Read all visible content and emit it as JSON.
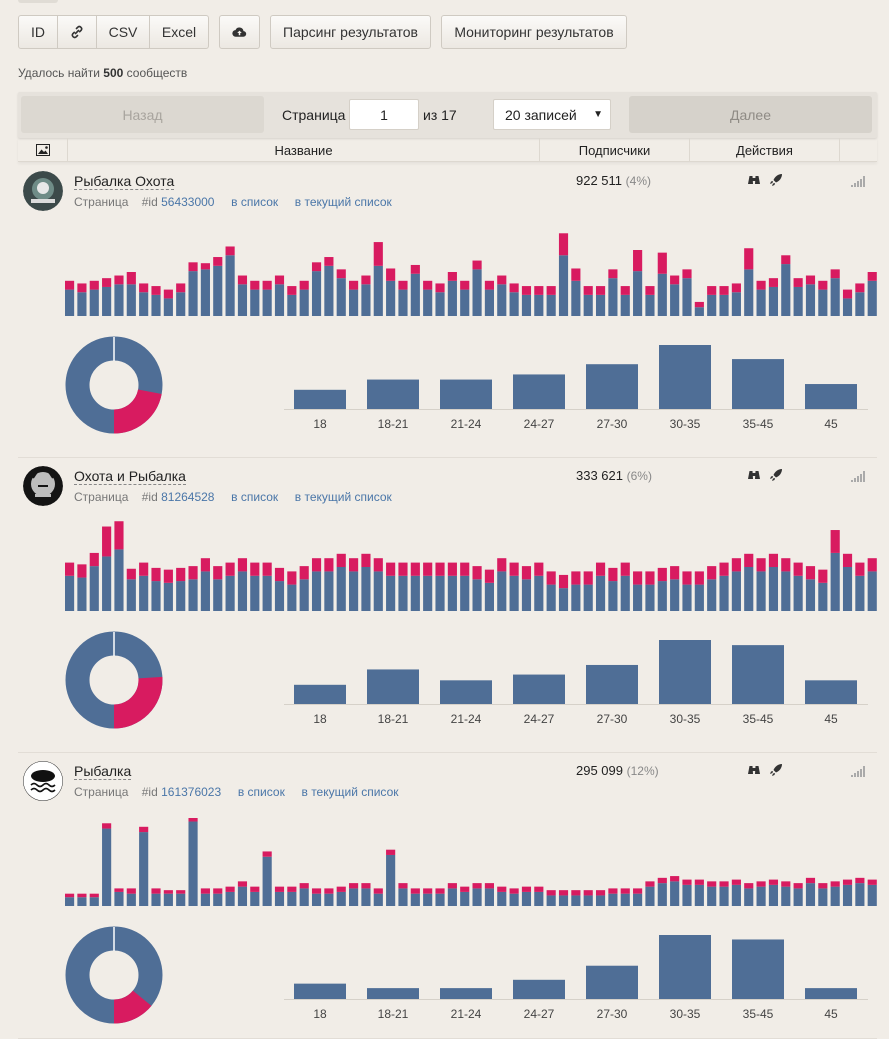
{
  "toolbar": {
    "id_label": "ID",
    "link_icon": "link-icon",
    "csv_label": "CSV",
    "excel_label": "Excel",
    "upload_icon": "cloud-upload-icon",
    "parse_label": "Парсинг результатов",
    "monitor_label": "Мониторинг результатов"
  },
  "found": {
    "prefix": "Удалось найти ",
    "count": "500",
    "suffix": " сообществ"
  },
  "pager": {
    "back_label": "Назад",
    "page_label": "Страница",
    "page_value": "1",
    "of_label": "из 17",
    "per_page": "20 записей",
    "next_label": "Далее"
  },
  "table": {
    "headers": {
      "image_icon": "image-icon",
      "name": "Название",
      "subscribers": "Подписчики",
      "actions": "Действия"
    }
  },
  "colors": {
    "blue": "#4f6e96",
    "pink": "#d81b60",
    "accent_link": "#4a76a8"
  },
  "age_labels": [
    "18",
    "18-21",
    "21-24",
    "24-27",
    "27-30",
    "30-35",
    "35-45",
    "45"
  ],
  "groups": [
    {
      "name": "Рыбалка Охота",
      "type": "Страница",
      "id_prefix": "#id",
      "id": "56433000",
      "to_list": "в список",
      "to_current_list": "в текущий список",
      "subscribers": "922 511",
      "percent": "(4%)",
      "donut_female_share": 0.22,
      "age_values": [
        0.3,
        0.46,
        0.46,
        0.54,
        0.7,
        1.0,
        0.78,
        0.39
      ],
      "daily": [
        [
          0.3,
          0.1
        ],
        [
          0.27,
          0.1
        ],
        [
          0.3,
          0.1
        ],
        [
          0.33,
          0.1
        ],
        [
          0.36,
          0.1
        ],
        [
          0.36,
          0.14
        ],
        [
          0.27,
          0.1
        ],
        [
          0.24,
          0.1
        ],
        [
          0.2,
          0.1
        ],
        [
          0.27,
          0.1
        ],
        [
          0.51,
          0.1
        ],
        [
          0.53,
          0.07
        ],
        [
          0.57,
          0.1
        ],
        [
          0.69,
          0.1
        ],
        [
          0.36,
          0.1
        ],
        [
          0.3,
          0.1
        ],
        [
          0.3,
          0.1
        ],
        [
          0.36,
          0.1
        ],
        [
          0.24,
          0.1
        ],
        [
          0.3,
          0.1
        ],
        [
          0.51,
          0.1
        ],
        [
          0.57,
          0.1
        ],
        [
          0.43,
          0.1
        ],
        [
          0.3,
          0.1
        ],
        [
          0.36,
          0.1
        ],
        [
          0.57,
          0.27
        ],
        [
          0.4,
          0.14
        ],
        [
          0.3,
          0.1
        ],
        [
          0.48,
          0.1
        ],
        [
          0.3,
          0.1
        ],
        [
          0.27,
          0.1
        ],
        [
          0.4,
          0.1
        ],
        [
          0.3,
          0.1
        ],
        [
          0.53,
          0.1
        ],
        [
          0.3,
          0.1
        ],
        [
          0.36,
          0.1
        ],
        [
          0.27,
          0.1
        ],
        [
          0.24,
          0.1
        ],
        [
          0.24,
          0.1
        ],
        [
          0.24,
          0.1
        ],
        [
          0.69,
          0.25
        ],
        [
          0.4,
          0.14
        ],
        [
          0.24,
          0.1
        ],
        [
          0.24,
          0.1
        ],
        [
          0.43,
          0.1
        ],
        [
          0.24,
          0.1
        ],
        [
          0.51,
          0.24
        ],
        [
          0.24,
          0.1
        ],
        [
          0.48,
          0.24
        ],
        [
          0.36,
          0.1
        ],
        [
          0.43,
          0.1
        ],
        [
          0.1,
          0.06
        ],
        [
          0.24,
          0.1
        ],
        [
          0.24,
          0.1
        ],
        [
          0.27,
          0.1
        ],
        [
          0.53,
          0.24
        ],
        [
          0.3,
          0.1
        ],
        [
          0.33,
          0.1
        ],
        [
          0.59,
          0.1
        ],
        [
          0.33,
          0.1
        ],
        [
          0.36,
          0.1
        ],
        [
          0.3,
          0.1
        ],
        [
          0.43,
          0.1
        ],
        [
          0.2,
          0.1
        ],
        [
          0.27,
          0.1
        ],
        [
          0.4,
          0.1
        ]
      ]
    },
    {
      "name": "Охота и Рыбалка",
      "type": "Страница",
      "id_prefix": "#id",
      "id": "81264528",
      "to_list": "в список",
      "to_current_list": "в текущий список",
      "subscribers": "333 621",
      "percent": "(6%)",
      "donut_female_share": 0.26,
      "age_values": [
        0.3,
        0.54,
        0.37,
        0.46,
        0.61,
        1.0,
        0.92,
        0.37
      ],
      "daily": [
        [
          0.4,
          0.15
        ],
        [
          0.38,
          0.15
        ],
        [
          0.51,
          0.15
        ],
        [
          0.62,
          0.34
        ],
        [
          0.7,
          0.32
        ],
        [
          0.36,
          0.12
        ],
        [
          0.4,
          0.15
        ],
        [
          0.34,
          0.15
        ],
        [
          0.32,
          0.15
        ],
        [
          0.34,
          0.15
        ],
        [
          0.36,
          0.15
        ],
        [
          0.45,
          0.15
        ],
        [
          0.36,
          0.15
        ],
        [
          0.4,
          0.15
        ],
        [
          0.45,
          0.15
        ],
        [
          0.4,
          0.15
        ],
        [
          0.4,
          0.15
        ],
        [
          0.34,
          0.15
        ],
        [
          0.3,
          0.15
        ],
        [
          0.36,
          0.15
        ],
        [
          0.45,
          0.15
        ],
        [
          0.45,
          0.15
        ],
        [
          0.5,
          0.15
        ],
        [
          0.45,
          0.15
        ],
        [
          0.5,
          0.15
        ],
        [
          0.45,
          0.15
        ],
        [
          0.4,
          0.15
        ],
        [
          0.4,
          0.15
        ],
        [
          0.4,
          0.15
        ],
        [
          0.4,
          0.15
        ],
        [
          0.4,
          0.15
        ],
        [
          0.4,
          0.15
        ],
        [
          0.4,
          0.15
        ],
        [
          0.36,
          0.15
        ],
        [
          0.32,
          0.15
        ],
        [
          0.45,
          0.15
        ],
        [
          0.4,
          0.15
        ],
        [
          0.36,
          0.15
        ],
        [
          0.4,
          0.15
        ],
        [
          0.3,
          0.15
        ],
        [
          0.26,
          0.15
        ],
        [
          0.3,
          0.15
        ],
        [
          0.3,
          0.15
        ],
        [
          0.4,
          0.15
        ],
        [
          0.34,
          0.15
        ],
        [
          0.4,
          0.15
        ],
        [
          0.3,
          0.15
        ],
        [
          0.3,
          0.15
        ],
        [
          0.34,
          0.15
        ],
        [
          0.36,
          0.15
        ],
        [
          0.3,
          0.15
        ],
        [
          0.3,
          0.15
        ],
        [
          0.36,
          0.15
        ],
        [
          0.4,
          0.15
        ],
        [
          0.45,
          0.15
        ],
        [
          0.5,
          0.15
        ],
        [
          0.45,
          0.15
        ],
        [
          0.5,
          0.15
        ],
        [
          0.45,
          0.15
        ],
        [
          0.4,
          0.15
        ],
        [
          0.36,
          0.15
        ],
        [
          0.32,
          0.15
        ],
        [
          0.66,
          0.26
        ],
        [
          0.5,
          0.15
        ],
        [
          0.4,
          0.15
        ],
        [
          0.45,
          0.15
        ]
      ]
    },
    {
      "name": "Рыбалка",
      "type": "Страница",
      "id_prefix": "#id",
      "id": "161376023",
      "to_list": "в список",
      "to_current_list": "в текущий список",
      "subscribers": "295 099",
      "percent": "(12%)",
      "donut_female_share": 0.14,
      "age_values": [
        0.24,
        0.17,
        0.17,
        0.3,
        0.52,
        1.0,
        0.93,
        0.17
      ],
      "daily": [
        [
          0.1,
          0.04
        ],
        [
          0.1,
          0.04
        ],
        [
          0.1,
          0.04
        ],
        [
          0.88,
          0.06
        ],
        [
          0.16,
          0.04
        ],
        [
          0.14,
          0.06
        ],
        [
          0.84,
          0.06
        ],
        [
          0.14,
          0.06
        ],
        [
          0.14,
          0.04
        ],
        [
          0.14,
          0.04
        ],
        [
          0.96,
          0.04
        ],
        [
          0.14,
          0.06
        ],
        [
          0.14,
          0.06
        ],
        [
          0.16,
          0.06
        ],
        [
          0.22,
          0.06
        ],
        [
          0.16,
          0.06
        ],
        [
          0.56,
          0.06
        ],
        [
          0.16,
          0.06
        ],
        [
          0.16,
          0.06
        ],
        [
          0.2,
          0.06
        ],
        [
          0.14,
          0.06
        ],
        [
          0.14,
          0.06
        ],
        [
          0.16,
          0.06
        ],
        [
          0.2,
          0.06
        ],
        [
          0.2,
          0.06
        ],
        [
          0.14,
          0.06
        ],
        [
          0.58,
          0.06
        ],
        [
          0.2,
          0.06
        ],
        [
          0.14,
          0.06
        ],
        [
          0.14,
          0.06
        ],
        [
          0.14,
          0.06
        ],
        [
          0.2,
          0.06
        ],
        [
          0.16,
          0.06
        ],
        [
          0.2,
          0.06
        ],
        [
          0.2,
          0.06
        ],
        [
          0.16,
          0.06
        ],
        [
          0.14,
          0.06
        ],
        [
          0.16,
          0.06
        ],
        [
          0.16,
          0.06
        ],
        [
          0.12,
          0.06
        ],
        [
          0.12,
          0.06
        ],
        [
          0.12,
          0.06
        ],
        [
          0.12,
          0.06
        ],
        [
          0.12,
          0.06
        ],
        [
          0.14,
          0.06
        ],
        [
          0.14,
          0.06
        ],
        [
          0.14,
          0.06
        ],
        [
          0.22,
          0.06
        ],
        [
          0.26,
          0.06
        ],
        [
          0.28,
          0.06
        ],
        [
          0.24,
          0.06
        ],
        [
          0.24,
          0.06
        ],
        [
          0.22,
          0.06
        ],
        [
          0.22,
          0.06
        ],
        [
          0.24,
          0.06
        ],
        [
          0.2,
          0.06
        ],
        [
          0.22,
          0.06
        ],
        [
          0.24,
          0.06
        ],
        [
          0.22,
          0.06
        ],
        [
          0.2,
          0.06
        ],
        [
          0.26,
          0.06
        ],
        [
          0.2,
          0.06
        ],
        [
          0.22,
          0.06
        ],
        [
          0.24,
          0.06
        ],
        [
          0.26,
          0.06
        ],
        [
          0.24,
          0.06
        ]
      ]
    }
  ]
}
